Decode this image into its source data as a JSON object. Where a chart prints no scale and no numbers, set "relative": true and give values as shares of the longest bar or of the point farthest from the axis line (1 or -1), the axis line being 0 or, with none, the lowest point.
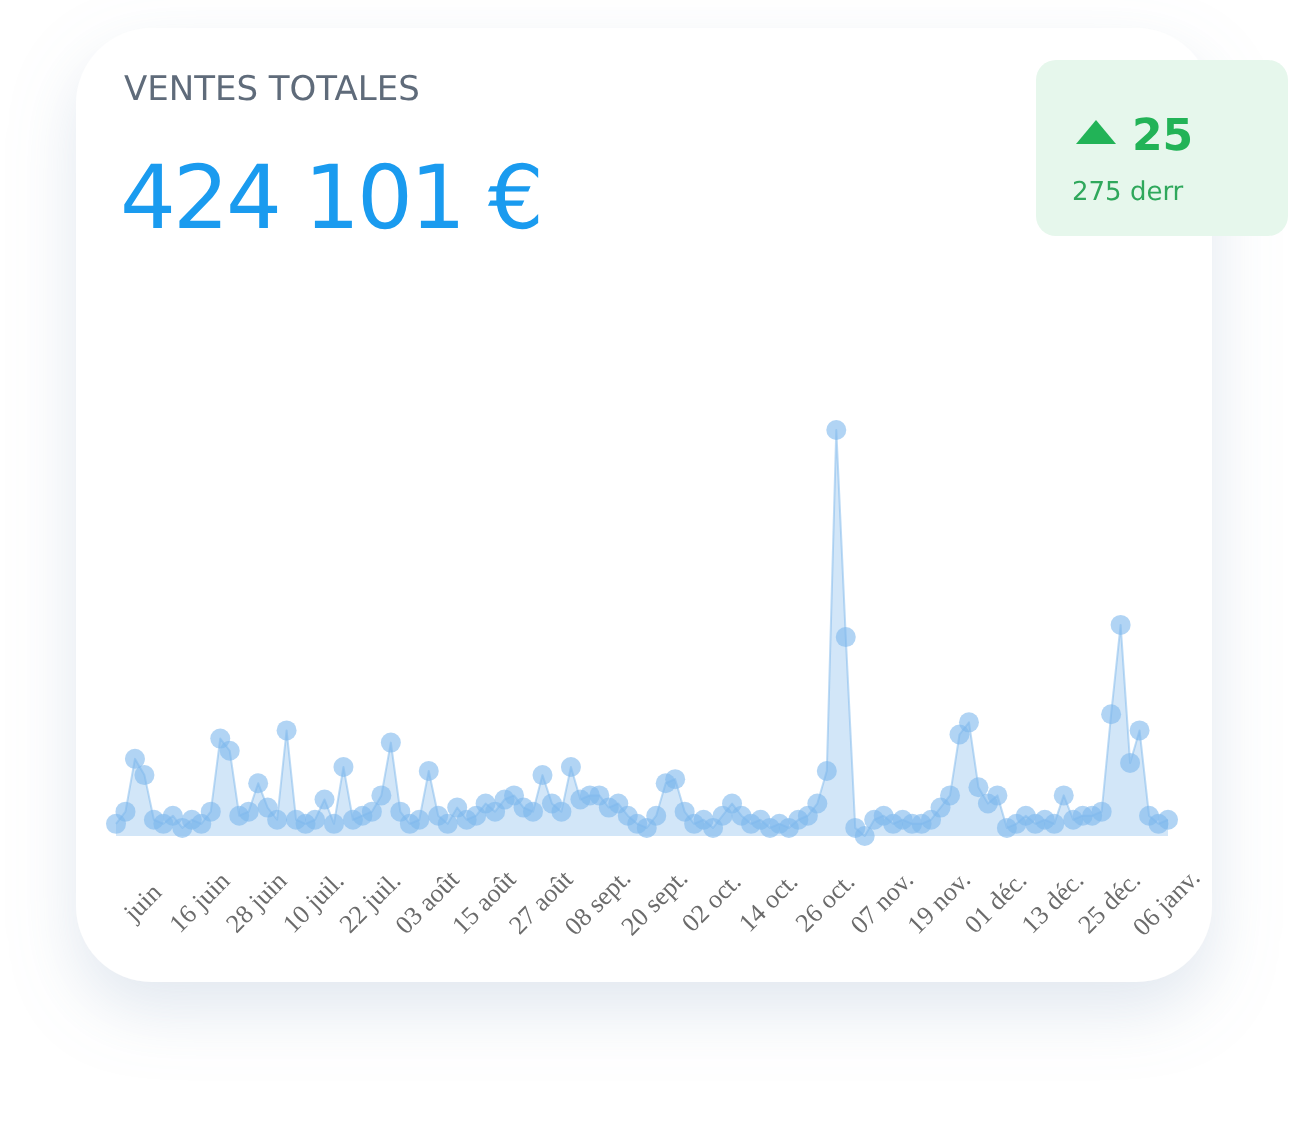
{
  "chart_data": {
    "type": "area",
    "title": "VENTES TOTALES",
    "subtitle": "424 101 €",
    "annotations": [
      "25",
      "275 derr"
    ],
    "relative": true,
    "marker": "circle",
    "color": "#7db8ec",
    "categories": [
      null,
      null,
      null,
      "juin",
      null,
      null,
      null,
      null,
      null,
      "16 juin",
      null,
      null,
      null,
      null,
      null,
      "28 juin",
      null,
      null,
      null,
      null,
      null,
      "10 juil.",
      null,
      null,
      null,
      null,
      null,
      "22 juil.",
      null,
      null,
      null,
      null,
      null,
      "03 août",
      null,
      null,
      null,
      null,
      null,
      "15 août",
      null,
      null,
      null,
      null,
      null,
      "27 août",
      null,
      null,
      null,
      null,
      null,
      "08 sept.",
      null,
      null,
      null,
      null,
      null,
      "20 sept.",
      null,
      null,
      null,
      null,
      null,
      "02 oct.",
      null,
      null,
      null,
      null,
      null,
      "14 oct.",
      null,
      null,
      null,
      null,
      null,
      "26 oct.",
      null,
      null,
      null,
      null,
      null,
      "07 nov.",
      null,
      null,
      null,
      null,
      null,
      "19 nov.",
      null,
      null,
      null,
      null,
      null,
      "01 déc.",
      null,
      null,
      null,
      null,
      null,
      "13 déc.",
      null,
      null,
      null,
      null,
      null,
      "25 déc.",
      null,
      null,
      null,
      null,
      null,
      "06 janv."
    ],
    "values": [
      0.03,
      0.06,
      0.19,
      0.15,
      0.04,
      0.03,
      0.05,
      0.02,
      0.04,
      0.03,
      0.06,
      0.24,
      0.21,
      0.05,
      0.06,
      0.13,
      0.07,
      0.04,
      0.26,
      0.04,
      0.03,
      0.04,
      0.09,
      0.03,
      0.17,
      0.04,
      0.05,
      0.06,
      0.1,
      0.23,
      0.06,
      0.03,
      0.04,
      0.16,
      0.05,
      0.03,
      0.07,
      0.04,
      0.05,
      0.08,
      0.06,
      0.09,
      0.1,
      0.07,
      0.06,
      0.15,
      0.08,
      0.06,
      0.17,
      0.09,
      0.1,
      0.1,
      0.07,
      0.08,
      0.05,
      0.03,
      0.02,
      0.05,
      0.13,
      0.14,
      0.06,
      0.03,
      0.04,
      0.02,
      0.05,
      0.08,
      0.05,
      0.03,
      0.04,
      0.02,
      0.03,
      0.02,
      0.04,
      0.05,
      0.08,
      0.16,
      1,
      0.49,
      0.02,
      0,
      0.04,
      0.05,
      0.03,
      0.04,
      0.03,
      0.03,
      0.04,
      0.07,
      0.1,
      0.25,
      0.28,
      0.12,
      0.08,
      0.1,
      0.02,
      0.03,
      0.05,
      0.03,
      0.04,
      0.03,
      0.1,
      0.04,
      0.05,
      0.05,
      0.06,
      0.3,
      0.52,
      0.18,
      0.26,
      0.05,
      0.03,
      0.04
    ]
  }
}
